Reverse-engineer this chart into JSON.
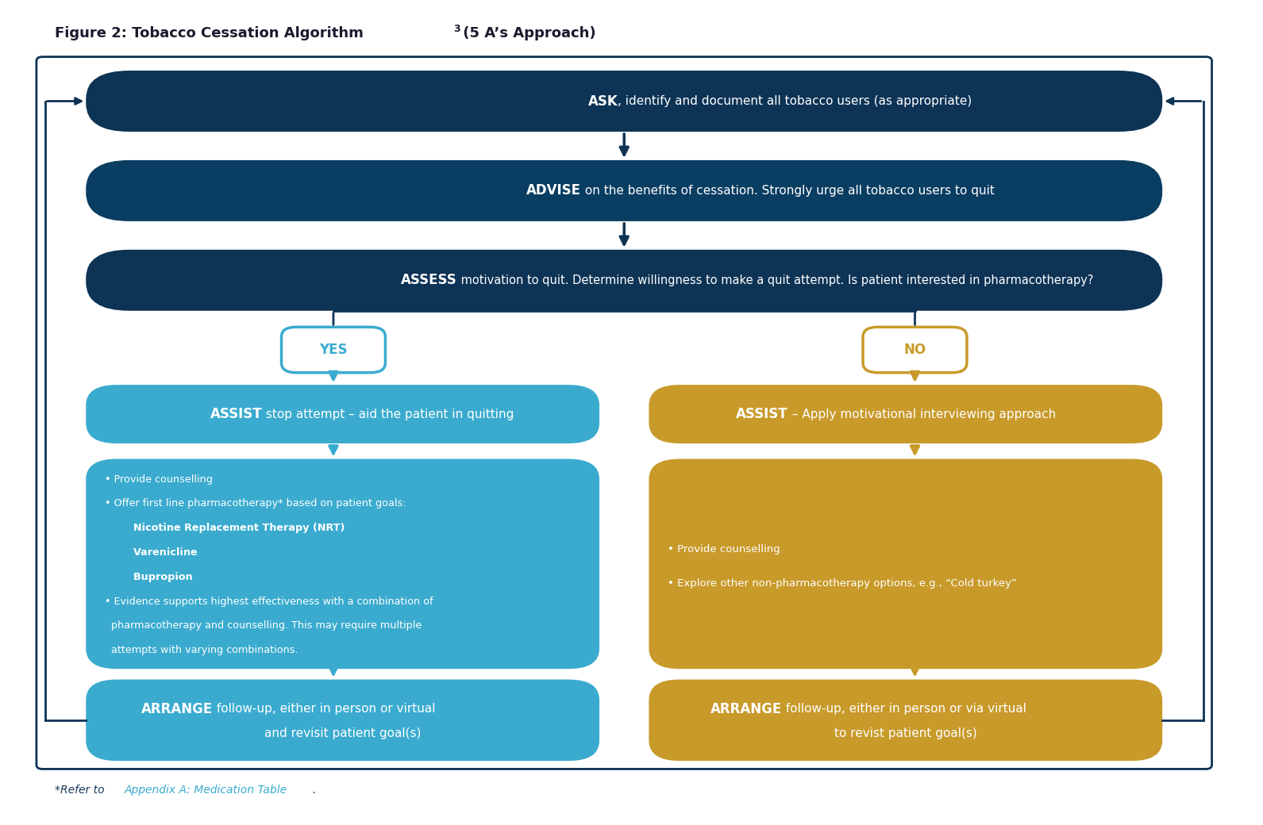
{
  "title": "Figure 2: Tobacco Cessation Algorithm³ (5 A’s Approach)",
  "title_fontsize": 13,
  "title_color": "#1a1a2e",
  "bg_color": "#ffffff",
  "dark_navy": "#0d3355",
  "mid_navy": "#0a3d62",
  "blue_box": "#3aabcf",
  "gold_box": "#c89a2a",
  "yes_border": "#3aabcf",
  "no_border": "#c89a2a",
  "footnote": "*Refer to ",
  "footnote_link": "Appendix A: Medication Table",
  "footnote_color": "#1a3a5c",
  "footnote_link_color": "#3aabcf"
}
